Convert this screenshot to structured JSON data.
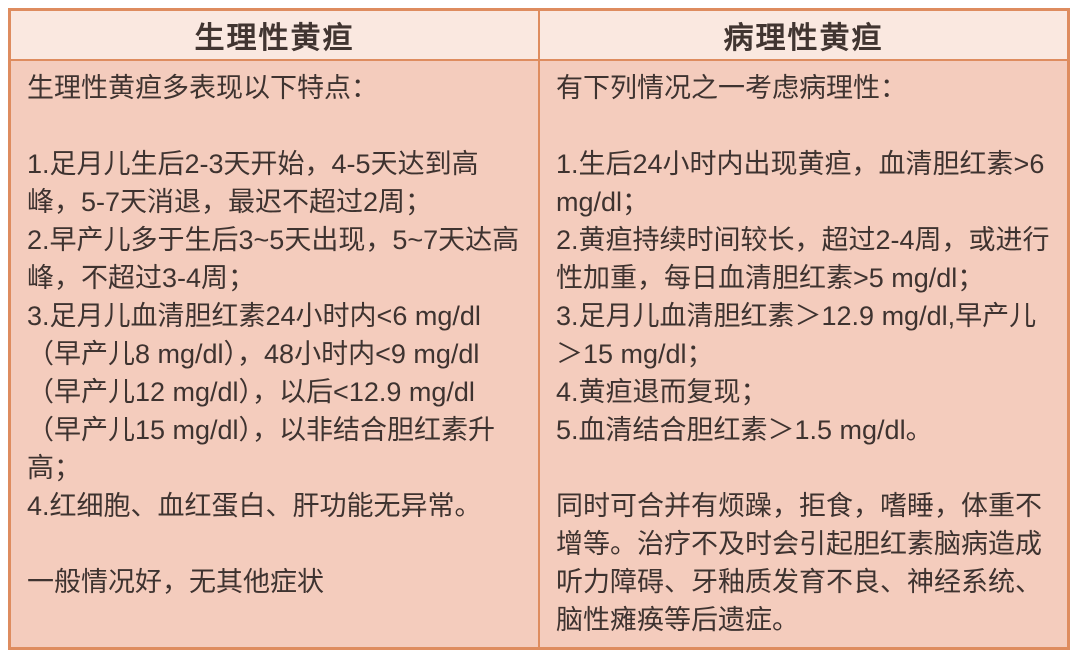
{
  "table": {
    "columns": [
      {
        "header": "生理性黄疸",
        "intro": "生理性黄疸多表现以下特点：",
        "items": [
          "1.足月儿生后2-3天开始，4-5天达到高峰，5-7天消退，最迟不超过2周；",
          "2.早产儿多于生后3~5天出现，5~7天达高峰，不超过3-4周；",
          "3.足月儿血清胆红素24小时内<6 mg/dl（早产儿8 mg/dl），48小时内<9 mg/dl（早产儿12 mg/dl），以后<12.9 mg/dl（早产儿15 mg/dl），以非结合胆红素升高；",
          "4.红细胞、血红蛋白、肝功能无异常。"
        ],
        "note": "一般情况好，无其他症状"
      },
      {
        "header": "病理性黄疸",
        "intro": "有下列情况之一考虑病理性：",
        "items": [
          "1.生后24小时内出现黄疸，血清胆红素>6 mg/dl；",
          "2.黄疸持续时间较长，超过2-4周，或进行性加重，每日血清胆红素>5 mg/dl；",
          "3.足月儿血清胆红素＞12.9 mg/dl,早产儿＞15 mg/dl；",
          "4.黄疸退而复现；",
          "5.血清结合胆红素＞1.5 mg/dl。"
        ],
        "note": "同时可合并有烦躁，拒食，嗜睡，体重不增等。治疗不及时会引起胆红素脑病造成听力障碍、牙釉质发育不良、神经系统、脑性瘫痪等后遗症。"
      }
    ]
  },
  "colors": {
    "border": "#de8c5f",
    "header_bg": "#fae8e0",
    "body_bg": "#f4ccbd",
    "text": "#3e3330",
    "page_bg": "#ffffff"
  }
}
